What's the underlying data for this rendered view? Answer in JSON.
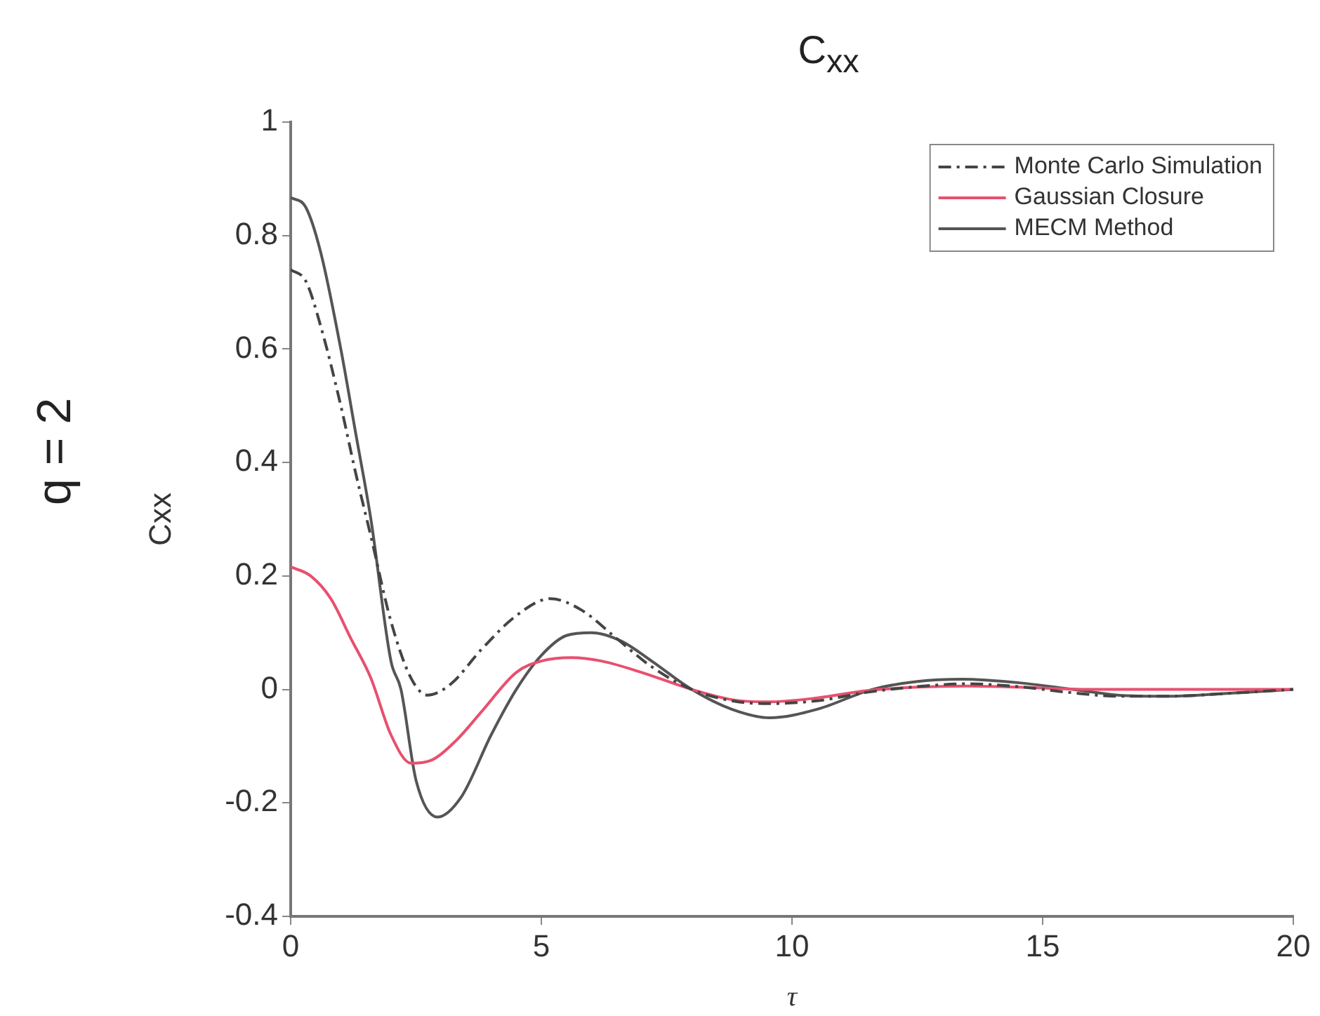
{
  "chart_data": {
    "type": "line",
    "title": "C$_{xx}$",
    "xlabel": "τ",
    "ylabel": "Cxx",
    "annotations": [
      "q = 2"
    ],
    "xlim": [
      0,
      20
    ],
    "xticks": [
      0,
      5,
      10,
      15,
      20
    ],
    "ylim": [
      -0.4,
      1
    ],
    "yticks": [
      -0.4,
      -0.2,
      0,
      0.2,
      0.4,
      0.6,
      0.8,
      1
    ],
    "grid": false,
    "legend": "top right",
    "marker": "none",
    "series": [
      {
        "name": "Monte Carlo Simulation",
        "color": "#444444",
        "line_style": "dashdot",
        "x": [
          0,
          0.3,
          0.6,
          1,
          1.3,
          1.6,
          2,
          2.4,
          2.73,
          3.2,
          3.8,
          4.5,
          5.18,
          5.8,
          6.5,
          7.2,
          8,
          8.8,
          9.5,
          10.5,
          11.5,
          12.5,
          13.5,
          14.5,
          15.5,
          16.5,
          17.5,
          18.5,
          20
        ],
        "values": [
          0.74,
          0.72,
          0.64,
          0.5,
          0.38,
          0.27,
          0.12,
          0.02,
          -0.01,
          0.01,
          0.07,
          0.13,
          0.16,
          0.14,
          0.09,
          0.04,
          0,
          -0.02,
          -0.025,
          -0.02,
          -0.005,
          0.005,
          0.01,
          0.005,
          -0.005,
          -0.012,
          -0.012,
          -0.008,
          0
        ]
      },
      {
        "name": "Gaussian Closure",
        "color": "#e8506e",
        "line_style": "solid",
        "x": [
          0,
          0.4,
          0.8,
          1.2,
          1.6,
          2,
          2.4,
          2.8,
          3.3,
          3.8,
          4.5,
          5,
          5.6,
          6.2,
          7,
          8,
          8.8,
          9.5,
          10.5,
          11.5,
          12.5,
          13.5,
          14.5,
          16,
          18,
          20
        ],
        "values": [
          0.216,
          0.2,
          0.16,
          0.09,
          0.02,
          -0.08,
          -0.13,
          -0.125,
          -0.09,
          -0.04,
          0.03,
          0.05,
          0.056,
          0.05,
          0.03,
          0,
          -0.018,
          -0.022,
          -0.015,
          -0.002,
          0.004,
          0.006,
          0.004,
          0,
          0,
          0
        ]
      },
      {
        "name": "MECM Method",
        "color": "#555555",
        "line_style": "solid",
        "x": [
          0,
          0.3,
          0.6,
          1,
          1.3,
          1.6,
          2,
          2.2,
          2.5,
          2.93,
          3.4,
          4,
          4.5,
          5,
          5.5,
          6,
          6.6,
          7.2,
          8,
          8.8,
          9.55,
          10.5,
          11.6,
          12.5,
          13.4,
          14.5,
          15.6,
          16.5,
          17.5,
          18.5,
          20
        ],
        "values": [
          0.867,
          0.85,
          0.77,
          0.6,
          0.45,
          0.3,
          0.05,
          0,
          -0.16,
          -0.225,
          -0.19,
          -0.08,
          0,
          0.06,
          0.095,
          0.1,
          0.085,
          0.05,
          0,
          -0.035,
          -0.05,
          -0.035,
          0,
          0.014,
          0.018,
          0.012,
          0,
          -0.01,
          -0.012,
          -0.008,
          0
        ]
      }
    ]
  }
}
